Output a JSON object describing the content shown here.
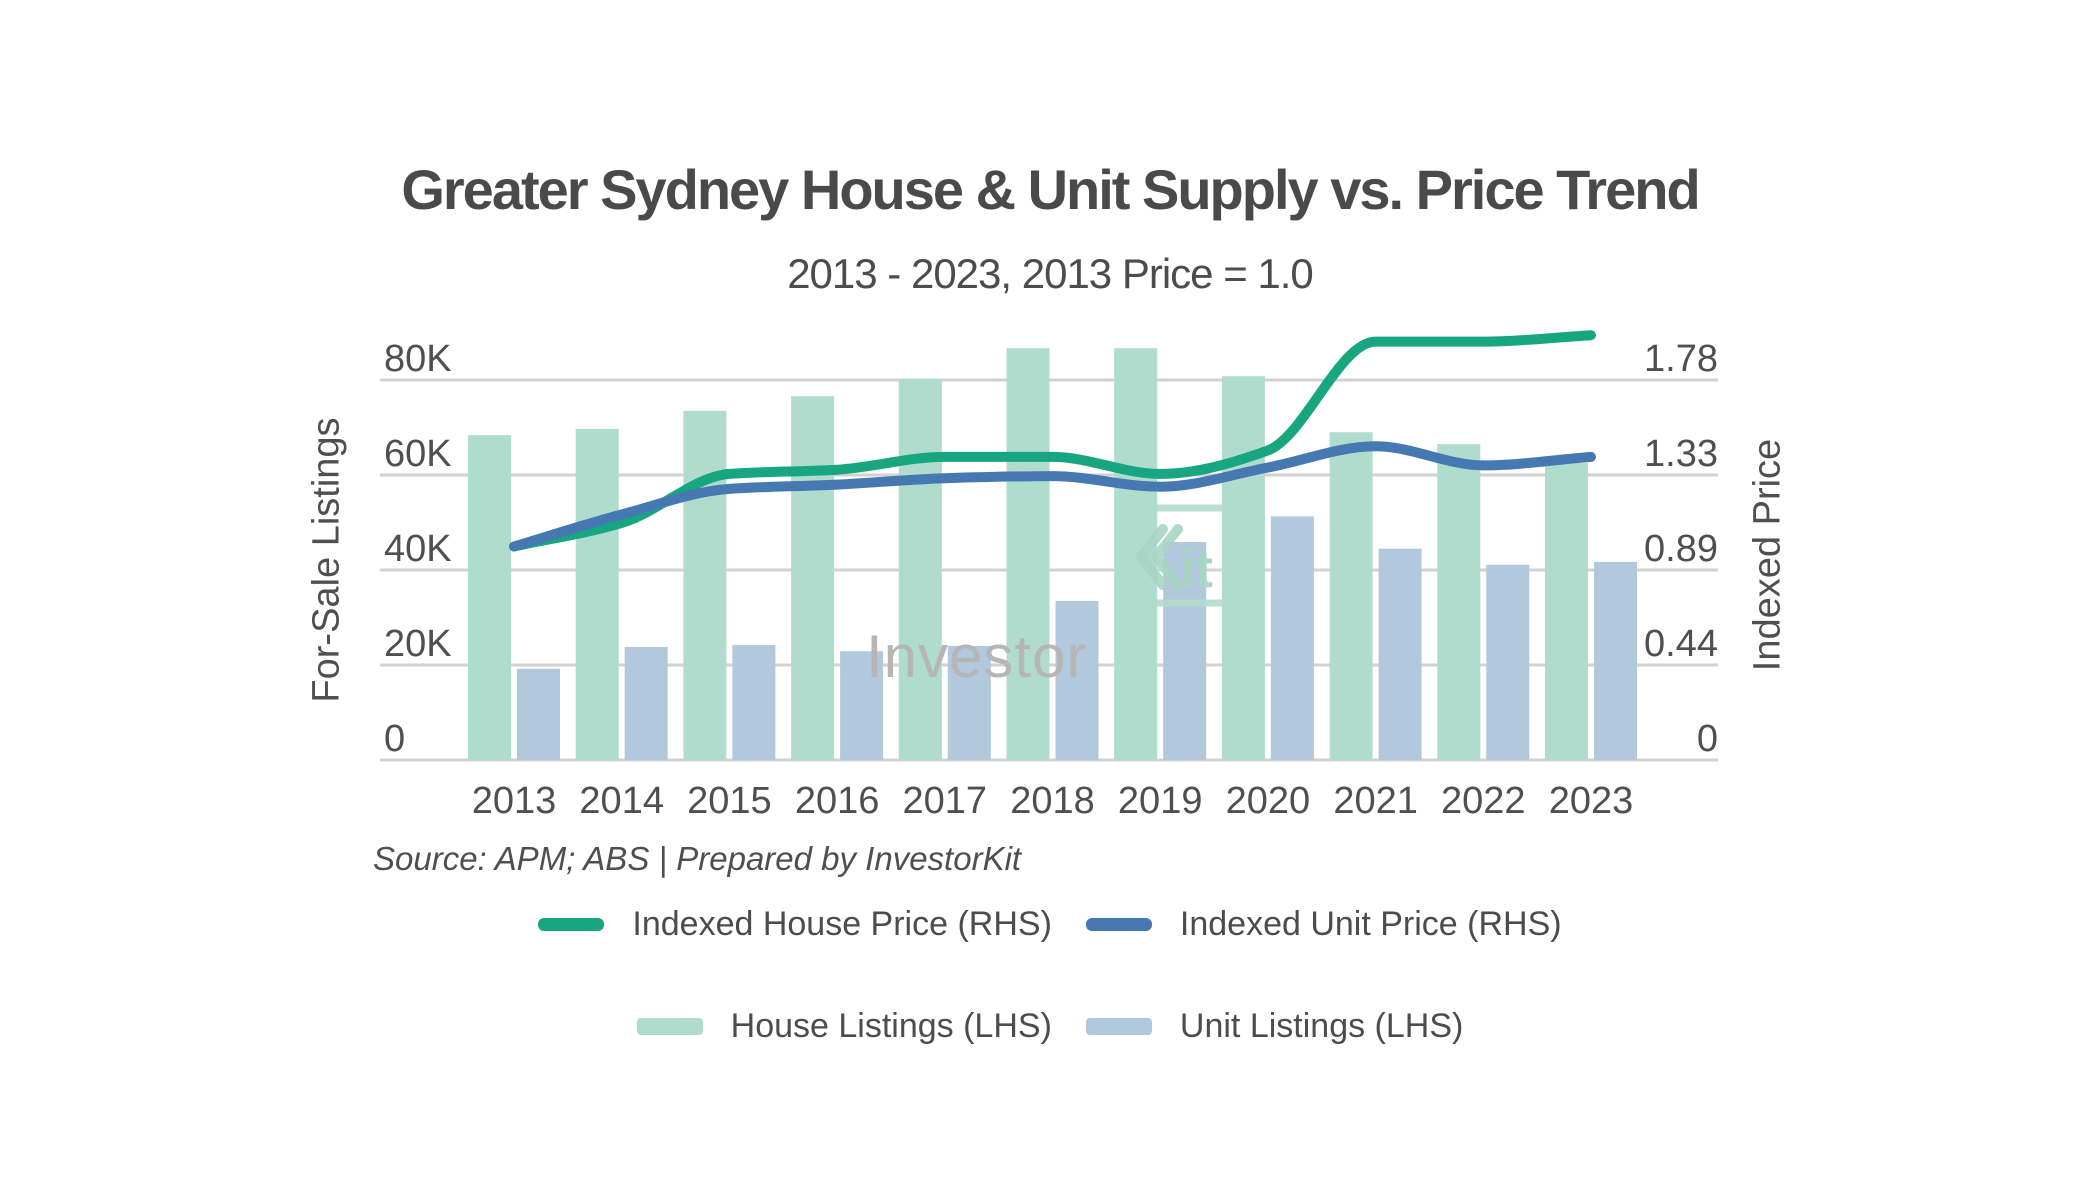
{
  "title": "Greater Sydney House & Unit Supply vs. Price Trend",
  "subtitle": "2013 - 2023, 2013 Price = 1.0",
  "source": "Source: APM; ABS | Prepared by InvestorKit",
  "watermark": {
    "investor": "Investor",
    "kit_k": "K",
    "kit_it": "it"
  },
  "axes": {
    "left_label": "For-Sale Listings",
    "right_label": "Indexed Price",
    "left_tick_labels": [
      "0",
      "20K",
      "40K",
      "60K",
      "80K"
    ],
    "right_tick_labels": [
      "0",
      "0.44",
      "0.89",
      "1.33",
      "1.78"
    ]
  },
  "legend": {
    "rows": [
      [
        {
          "label": "Indexed House Price (RHS)",
          "swatch": "line",
          "color": "#17a67f"
        },
        {
          "label": "Indexed Unit Price (RHS)",
          "swatch": "line",
          "color": "#4679b2"
        }
      ],
      [
        {
          "label": "House Listings (LHS)",
          "swatch": "rect",
          "color": "#b0dccd"
        },
        {
          "label": "Unit Listings (LHS)",
          "swatch": "rect",
          "color": "#b1c8dd"
        }
      ]
    ]
  },
  "colors": {
    "house_bar": "#b0dccd",
    "unit_bar": "#b1c8dd",
    "house_line": "#17a67f",
    "unit_line": "#4679b2",
    "gridline": "#d2d2d2",
    "text": "#4f4f4f",
    "watermark_green": "#a9d5c5",
    "watermark_gray": "#b6b6b6"
  },
  "chart_data": {
    "type": "bar",
    "subtype": "dual-axis bar + smoothed line",
    "title": "Greater Sydney House & Unit Supply vs. Price Trend",
    "subtitle": "2013 - 2023, 2013 Price = 1.0",
    "categories": [
      2013,
      2014,
      2015,
      2016,
      2017,
      2018,
      2019,
      2020,
      2021,
      2022,
      2023
    ],
    "x_tick_labels": [
      "2013",
      "2014",
      "2015",
      "2016",
      "2017",
      "2018",
      "2019",
      "2020",
      "2021",
      "2022",
      "2023"
    ],
    "xlabel": "",
    "ylabel_left": "For-Sale Listings",
    "ylabel_right": "Indexed Price",
    "ylim_left": [
      0,
      100000
    ],
    "ylim_right": [
      0,
      2.09
    ],
    "left_axis_ticks": [
      0,
      20000,
      40000,
      60000,
      80000
    ],
    "right_axis_ticks": [
      0,
      0.445,
      0.89,
      1.335,
      1.78
    ],
    "grid": "horizontal",
    "legend_position": "bottom",
    "series": [
      {
        "name": "House Listings (LHS)",
        "type": "bar",
        "axis": "left",
        "color": "#b0dccd",
        "values": [
          68400,
          69700,
          73500,
          76600,
          80200,
          86700,
          86700,
          80800,
          69000,
          66500,
          62500
        ]
      },
      {
        "name": "Unit Listings (LHS)",
        "type": "bar",
        "axis": "left",
        "color": "#b1c8dd",
        "values": [
          19200,
          23800,
          24200,
          22900,
          24000,
          33500,
          45900,
          51300,
          44500,
          41100,
          41700
        ]
      },
      {
        "name": "Indexed House Price (RHS)",
        "type": "line",
        "axis": "right",
        "color": "#17a67f",
        "values": [
          1.0,
          1.11,
          1.34,
          1.36,
          1.42,
          1.42,
          1.34,
          1.45,
          1.96,
          1.96,
          1.99
        ]
      },
      {
        "name": "Indexed Unit Price (RHS)",
        "type": "line",
        "axis": "right",
        "color": "#4679b2",
        "values": [
          1.0,
          1.15,
          1.27,
          1.29,
          1.32,
          1.33,
          1.28,
          1.37,
          1.47,
          1.38,
          1.42
        ]
      }
    ]
  }
}
